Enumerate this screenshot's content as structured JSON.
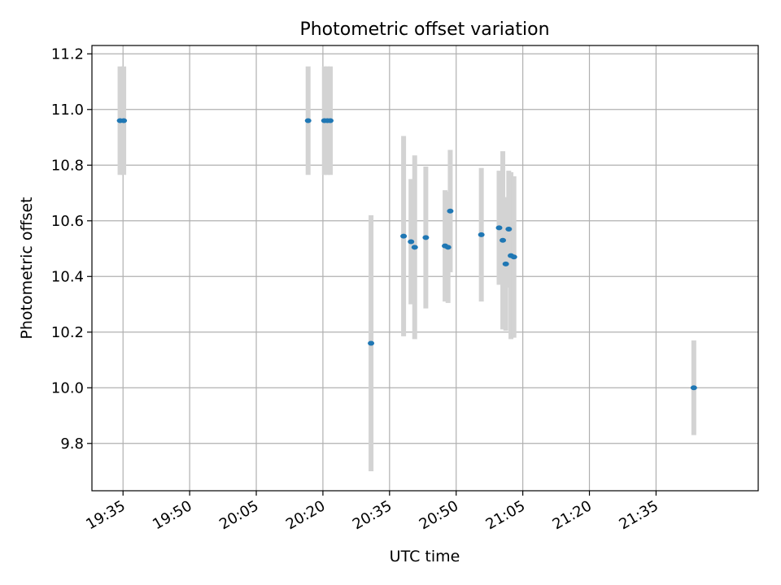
{
  "chart_data": {
    "type": "scatter",
    "title": "Photometric offset variation",
    "xlabel": "UTC time",
    "ylabel": "Photometric offset",
    "xlim": [
      "19:28",
      "21:58"
    ],
    "ylim": [
      9.63,
      11.23
    ],
    "xticks": [
      "19:35",
      "19:50",
      "20:05",
      "20:20",
      "20:35",
      "20:50",
      "21:05",
      "21:20",
      "21:35"
    ],
    "yticks": [
      9.8,
      10.0,
      10.2,
      10.4,
      10.6,
      10.8,
      11.0,
      11.2
    ],
    "grid": true,
    "marker_color": "#1f77b4",
    "errorbar_color": "#d3d3d3",
    "points": [
      {
        "x": "19:34:20",
        "y": 10.96,
        "err": 0.195
      },
      {
        "x": "19:35:10",
        "y": 10.96,
        "err": 0.195
      },
      {
        "x": "20:16:40",
        "y": 10.96,
        "err": 0.195
      },
      {
        "x": "20:20:20",
        "y": 10.96,
        "err": 0.195
      },
      {
        "x": "20:21:00",
        "y": 10.96,
        "err": 0.195
      },
      {
        "x": "20:21:40",
        "y": 10.96,
        "err": 0.195
      },
      {
        "x": "20:30:50",
        "y": 10.16,
        "err": 0.46
      },
      {
        "x": "20:38:10",
        "y": 10.545,
        "err": 0.36
      },
      {
        "x": "20:39:50",
        "y": 10.525,
        "err": 0.225
      },
      {
        "x": "20:40:40",
        "y": 10.505,
        "err": 0.33
      },
      {
        "x": "20:43:10",
        "y": 10.54,
        "err": 0.255
      },
      {
        "x": "20:47:30",
        "y": 10.51,
        "err": 0.2
      },
      {
        "x": "20:48:10",
        "y": 10.505,
        "err": 0.2
      },
      {
        "x": "20:48:40",
        "y": 10.635,
        "err": 0.22
      },
      {
        "x": "20:55:40",
        "y": 10.55,
        "err": 0.24
      },
      {
        "x": "20:59:40",
        "y": 10.575,
        "err": 0.205
      },
      {
        "x": "21:00:30",
        "y": 10.53,
        "err": 0.32
      },
      {
        "x": "21:01:10",
        "y": 10.445,
        "err": 0.24
      },
      {
        "x": "21:01:50",
        "y": 10.57,
        "err": 0.21
      },
      {
        "x": "21:02:20",
        "y": 10.475,
        "err": 0.3
      },
      {
        "x": "21:03:00",
        "y": 10.47,
        "err": 0.29
      },
      {
        "x": "21:43:30",
        "y": 10.0,
        "err": 0.17
      }
    ]
  }
}
